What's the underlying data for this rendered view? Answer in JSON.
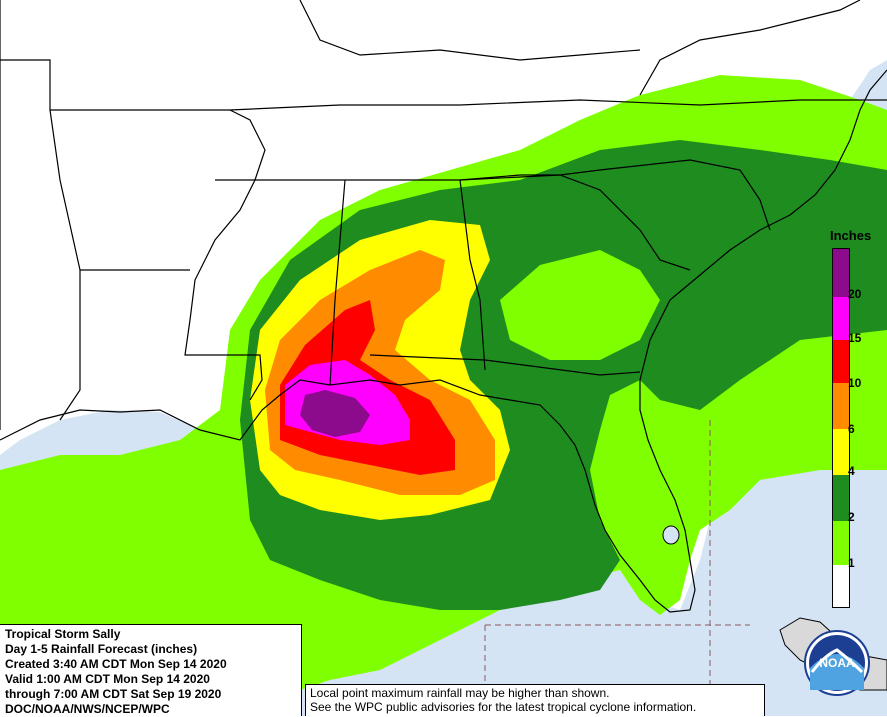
{
  "legend": {
    "title": "Inches",
    "ticks": [
      "20",
      "15",
      "10",
      "6",
      "4",
      "2",
      "1"
    ],
    "colors": [
      "#8c0a8c",
      "#ff00ff",
      "#ff0000",
      "#ff8c00",
      "#ffff00",
      "#1e8c1e",
      "#7fff00",
      "#ffffff"
    ]
  },
  "info": {
    "line1": "Tropical Storm Sally",
    "line2": "Day 1-5 Rainfall Forecast (inches)",
    "line3": "Created 3:40 AM CDT Mon Sep 14 2020",
    "line4": "Valid 1:00 AM CDT Mon Sep 14 2020",
    "line5": "through 7:00 AM CDT Sat Sep 19 2020",
    "line6": "DOC/NOAA/NWS/NCEP/WPC"
  },
  "note": {
    "line1": "Local point maximum rainfall may be higher than shown.",
    "line2": "See the WPC public advisories for the latest tropical cyclone information."
  },
  "logo": {
    "text": "NOAA"
  },
  "colors": {
    "water": "#d4e4f5",
    "land": "#ffffff",
    "border": "#000000"
  }
}
